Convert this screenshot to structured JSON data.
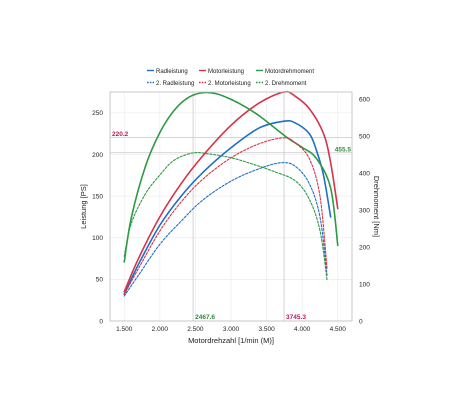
{
  "chart_data": {
    "type": "line",
    "xlabel": "Motordrehzahl [1/min (M)]",
    "ylabel": "Leistung [PS]",
    "y2label": "Drehmoment [Nm]",
    "xlim": [
      1300,
      4700
    ],
    "ylim": [
      0,
      275
    ],
    "y2lim": [
      0,
      620
    ],
    "x_ticks": [
      1500,
      2000,
      2500,
      3000,
      3500,
      4000,
      4500
    ],
    "x_tick_labels": [
      "1.500",
      "2.000",
      "2.500",
      "3.000",
      "3.500",
      "4.000",
      "4.500"
    ],
    "y_ticks": [
      0,
      50,
      100,
      150,
      200,
      250
    ],
    "y_tick_labels": [
      "0",
      "50",
      "100",
      "150",
      "200",
      "250"
    ],
    "y2_ticks": [
      0,
      100,
      200,
      300,
      400,
      500,
      600
    ],
    "y2_tick_labels": [
      "0",
      "100",
      "200",
      "300",
      "400",
      "500",
      "600"
    ],
    "grid": true,
    "legend_position": "top-center",
    "markers": {
      "vertical": [
        {
          "x": 2467.6,
          "label": "2467.6",
          "color": "#2e8b3a"
        },
        {
          "x": 3745.3,
          "label": "3745.3",
          "color": "#c2185b"
        }
      ],
      "horizontal": [
        {
          "y": 220.2,
          "axis": "left",
          "label": "220.2",
          "color": "#c2185b"
        },
        {
          "y": 455.5,
          "axis": "right",
          "label": "455.5",
          "color": "#2e8b3a"
        }
      ]
    },
    "series": [
      {
        "name": "Radleistung",
        "color": "#1e6fc8",
        "dash": false,
        "axis": "left",
        "x": [
          1500,
          1700,
          2000,
          2300,
          2600,
          3000,
          3400,
          3745,
          3900,
          4100,
          4200,
          4300,
          4400
        ],
        "y": [
          32,
          68,
          115,
          150,
          178,
          208,
          232,
          240,
          238,
          225,
          205,
          175,
          125
        ]
      },
      {
        "name": "Motorleistung",
        "color": "#d6334b",
        "dash": false,
        "axis": "left",
        "x": [
          1500,
          1700,
          2000,
          2300,
          2600,
          3000,
          3400,
          3745,
          3900,
          4100,
          4300,
          4400,
          4500
        ],
        "y": [
          35,
          75,
          125,
          165,
          198,
          235,
          262,
          275,
          270,
          255,
          225,
          190,
          135
        ]
      },
      {
        "name": "Motordrehmoment",
        "color": "#2e9a44",
        "dash": false,
        "axis": "right",
        "x": [
          1500,
          1600,
          1800,
          2000,
          2200,
          2400,
          2600,
          2800,
          3000,
          3200,
          3400,
          3600,
          3800,
          4000,
          4200,
          4400,
          4500
        ],
        "y": [
          160,
          280,
          420,
          510,
          570,
          605,
          618,
          615,
          600,
          580,
          555,
          525,
          495,
          470,
          440,
          360,
          205
        ]
      },
      {
        "name": "2. Radleistung",
        "color": "#1e6fc8",
        "dash": true,
        "axis": "left",
        "x": [
          1500,
          1700,
          2000,
          2300,
          2600,
          3000,
          3400,
          3700,
          3900,
          4100,
          4250,
          4350
        ],
        "y": [
          30,
          55,
          92,
          120,
          145,
          168,
          183,
          190,
          186,
          165,
          125,
          55
        ]
      },
      {
        "name": "2. Motorleistung",
        "color": "#d6334b",
        "dash": true,
        "axis": "left",
        "x": [
          1500,
          1700,
          2000,
          2300,
          2600,
          3000,
          3400,
          3745,
          3900,
          4100,
          4250,
          4350
        ],
        "y": [
          32,
          63,
          108,
          143,
          170,
          196,
          213,
          220,
          214,
          195,
          150,
          62
        ]
      },
      {
        "name": "2. Drehmoment",
        "color": "#2e9a44",
        "dash": true,
        "axis": "right",
        "x": [
          1500,
          1600,
          1800,
          2000,
          2200,
          2467,
          2700,
          3000,
          3300,
          3600,
          3900,
          4100,
          4250,
          4350
        ],
        "y": [
          175,
          265,
          345,
          395,
          435,
          455,
          452,
          442,
          425,
          405,
          380,
          330,
          245,
          110
        ]
      }
    ]
  }
}
